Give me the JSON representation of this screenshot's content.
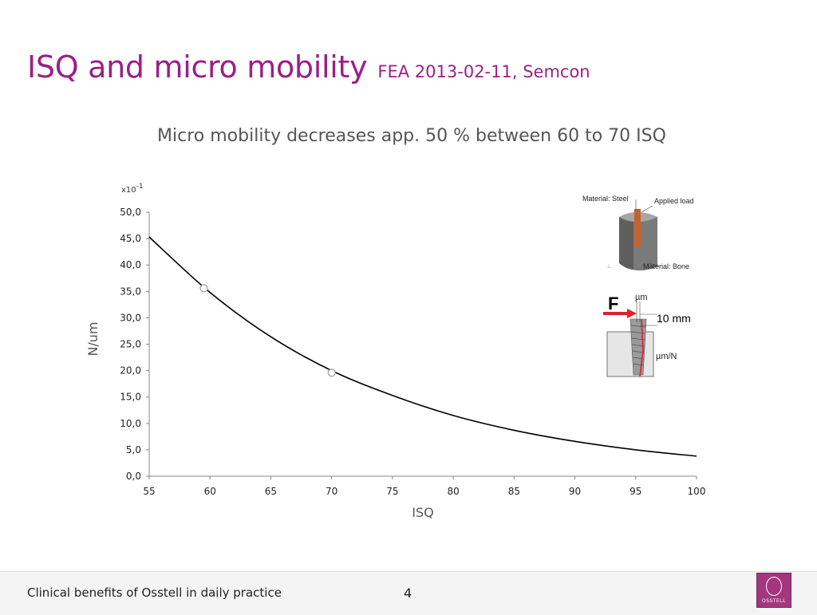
{
  "slide": {
    "title": "ISQ and micro mobility",
    "subtitle": "FEA 2013-02-11, Semcon",
    "headline": "Micro mobility decreases app. 50 % between 60 to 70 ISQ"
  },
  "footer": {
    "text": "Clinical benefits of Osstell in daily practice",
    "page_number": "4",
    "logo_text": "OSSTELL"
  },
  "diagram": {
    "material_steel": "Material: Steel",
    "applied_load": "Applied load",
    "material_bone": "Material: Bone",
    "force": "F",
    "um": "µm",
    "depth": "10 mm",
    "um_per_n": "µm/N"
  },
  "colors": {
    "accent": "#9b1f86",
    "arrow": "#d9232d",
    "curve": "#000000"
  },
  "chart_data": {
    "type": "line",
    "xlabel": "ISQ",
    "ylabel": "N/um",
    "y_multiplier": "x10",
    "y_multiplier_exp": "-1",
    "xlim": [
      55,
      100
    ],
    "ylim": [
      0,
      50
    ],
    "x_ticks": [
      "55",
      "60",
      "65",
      "70",
      "75",
      "80",
      "85",
      "90",
      "95",
      "100"
    ],
    "y_ticks": [
      "0,0",
      "5,0",
      "10,0",
      "15,0",
      "20,0",
      "25,0",
      "30,0",
      "35,0",
      "40,0",
      "45,0",
      "50,0"
    ],
    "grid": false,
    "series": [
      {
        "x": [
          55,
          60,
          65,
          70,
          75,
          80,
          85,
          90,
          95,
          100
        ],
        "y": [
          45.3,
          34.8,
          26.4,
          20.0,
          15.3,
          11.5,
          8.7,
          6.6,
          5.0,
          3.8
        ]
      }
    ],
    "markers": [
      {
        "x": 59.5,
        "y": 35.6
      },
      {
        "x": 70.0,
        "y": 19.6
      }
    ]
  }
}
